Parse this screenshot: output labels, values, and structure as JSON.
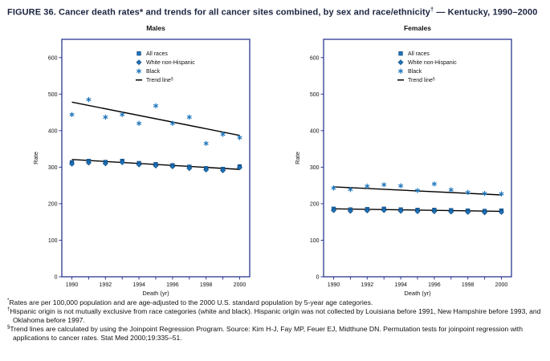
{
  "title": {
    "text": "FIGURE 36. Cancer death rates* and trends for all cancer sites combined, by sex and race/ethnicity",
    "sup": "†",
    "suffix": " — Kentucky, 1990–2000"
  },
  "colors": {
    "marker": "#1c75bc",
    "marker_outline": "#10477e",
    "frame": "#2b3990",
    "trend": "#000000"
  },
  "chart_data": [
    {
      "type": "scatter",
      "title": "Males",
      "xlabel": "Death (yr)",
      "ylabel": "Rate",
      "x": [
        1990,
        1991,
        1992,
        1993,
        1994,
        1995,
        1996,
        1997,
        1998,
        1999,
        2000
      ],
      "xlim": [
        1989.4,
        2000.6
      ],
      "ylim": [
        0,
        650
      ],
      "yticks": [
        0,
        100,
        200,
        300,
        400,
        500,
        600
      ],
      "xtick_labels": [
        1990,
        1992,
        1994,
        1996,
        1998,
        2000
      ],
      "series": [
        {
          "name": "All races",
          "marker": "square",
          "values": [
            313,
            317,
            314,
            317,
            311,
            308,
            305,
            301,
            297,
            295,
            302
          ]
        },
        {
          "name": "White non-Hispanic",
          "marker": "diamond",
          "values": [
            309,
            312,
            310,
            313,
            307,
            304,
            302,
            297,
            293,
            291,
            299
          ]
        },
        {
          "name": "Black",
          "marker": "asterisk",
          "values": [
            444,
            485,
            437,
            444,
            420,
            468,
            420,
            437,
            365,
            390,
            381
          ]
        }
      ],
      "trend_lines": [
        {
          "x": [
            1990,
            2000
          ],
          "y": [
            478,
            387
          ]
        },
        {
          "x": [
            1990,
            2000
          ],
          "y": [
            321,
            294
          ]
        }
      ],
      "trend_label": "Trend line",
      "trend_sup": "§",
      "legend_position": "top-center-right",
      "grid": false
    },
    {
      "type": "scatter",
      "title": "Females",
      "xlabel": "Death (yr)",
      "ylabel": "Rate",
      "x": [
        1990,
        1991,
        1992,
        1993,
        1994,
        1995,
        1996,
        1997,
        1998,
        1999,
        2000
      ],
      "xlim": [
        1989.4,
        2000.6
      ],
      "ylim": [
        0,
        650
      ],
      "yticks": [
        0,
        100,
        200,
        300,
        400,
        500,
        600
      ],
      "xtick_labels": [
        1990,
        1992,
        1994,
        1996,
        1998,
        2000
      ],
      "series": [
        {
          "name": "All races",
          "marker": "square",
          "values": [
            186,
            184,
            185,
            186,
            184,
            183,
            183,
            182,
            181,
            180,
            181
          ]
        },
        {
          "name": "White non-Hispanic",
          "marker": "diamond",
          "values": [
            182,
            180,
            181,
            182,
            180,
            179,
            179,
            178,
            177,
            176,
            177
          ]
        },
        {
          "name": "Black",
          "marker": "asterisk",
          "values": [
            243,
            239,
            248,
            252,
            249,
            236,
            254,
            238,
            231,
            228,
            227
          ]
        }
      ],
      "trend_lines": [
        {
          "x": [
            1990,
            2000
          ],
          "y": [
            246,
            224
          ]
        },
        {
          "x": [
            1990,
            2000
          ],
          "y": [
            186,
            179
          ]
        }
      ],
      "trend_label": "Trend line",
      "trend_sup": "§",
      "legend_position": "top-center-right",
      "grid": false
    }
  ],
  "footnotes": [
    {
      "marker": "*",
      "text": "Rates are per 100,000 population and are age-adjusted to the 2000 U.S. standard population by 5-year age categories."
    },
    {
      "marker": "†",
      "text": "Hispanic origin is not mutually exclusive from race categories (white and black). Hispanic origin was not collected by Louisiana before 1991, New Hampshire before 1993, and Oklahoma before 1997."
    },
    {
      "marker": "§",
      "text": "Trend lines are calculated by using the Joinpoint Regression Program. Source: Kim H-J, Fay MP, Feuer EJ, Midthune DN. Permutation tests for joinpoint regression with applications to cancer rates. Stat Med 2000;19:335–51."
    }
  ]
}
